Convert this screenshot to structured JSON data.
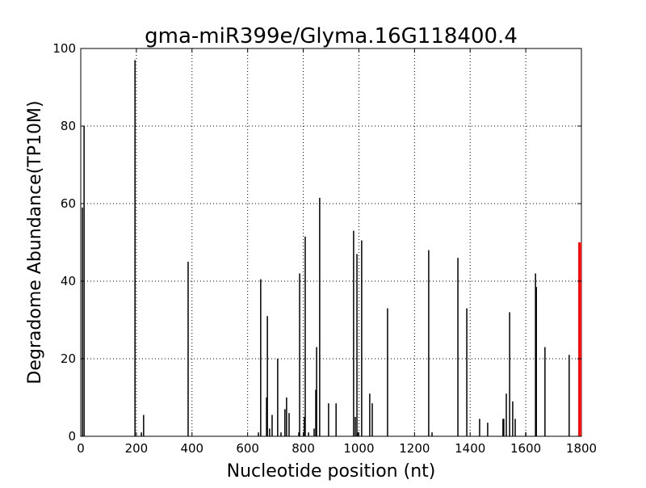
{
  "chart_data": {
    "type": "bar",
    "title": "gma-miR399e/Glyma.16G118400.4",
    "xlabel": "Nucleotide position (nt)",
    "ylabel": "Degradome Abundance(TP10M)",
    "xlim": [
      0,
      1800
    ],
    "ylim": [
      0,
      100
    ],
    "xticks": [
      "0",
      "200",
      "400",
      "600",
      "800",
      "1000",
      "1200",
      "1400",
      "1600",
      "1800"
    ],
    "yticks": [
      "0",
      "20",
      "40",
      "60",
      "80",
      "100"
    ],
    "grid": true,
    "bar_color": "#000000",
    "highlight_color": "#ff0000",
    "series": [
      {
        "x": [
          6,
          12,
          195,
          218,
          226,
          386,
          639,
          647,
          668,
          671,
          679,
          688,
          708,
          720,
          734,
          740,
          749,
          784,
          787,
          804,
          807,
          819,
          839,
          845,
          848,
          859,
          891,
          918,
          981,
          987,
          993,
          996,
          1010,
          1039,
          1048,
          1103,
          1251,
          1263,
          1356,
          1388,
          1434,
          1463,
          1518,
          1521,
          1530,
          1542,
          1553,
          1562,
          1600,
          1635,
          1638,
          1669,
          1756
        ],
        "values": [
          59,
          80,
          97,
          1,
          5.5,
          45,
          1,
          40.5,
          10,
          31,
          2,
          5.5,
          20,
          1,
          7,
          10,
          6,
          1,
          42,
          5,
          51.5,
          1,
          2,
          12,
          23,
          61.5,
          8.5,
          8.5,
          53,
          5,
          47,
          1,
          50.5,
          11,
          8.5,
          33,
          48,
          1,
          46,
          33,
          4.5,
          3.5,
          4.5,
          4.5,
          11,
          32,
          9,
          4.5,
          1,
          42,
          38.5,
          23,
          21
        ]
      },
      {
        "x": [
          1793
        ],
        "values": [
          50
        ],
        "highlight": true
      }
    ]
  }
}
